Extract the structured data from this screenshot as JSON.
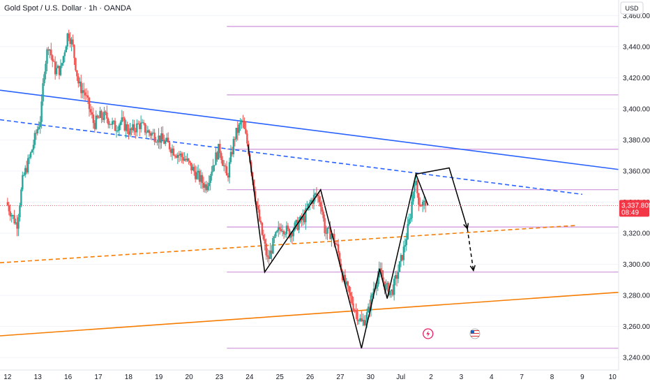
{
  "header": {
    "title": "Gold Spot / U.S. Dollar · 1h · OANDA",
    "currency": "USD"
  },
  "price_badge": {
    "price": "3,337.805",
    "countdown": "08:49",
    "color": "#f23645"
  },
  "colors": {
    "up": "#26a69a",
    "down": "#ef5350",
    "resistance_blue": "#2962ff",
    "support_orange": "#f57c00",
    "level_purple": "#ce93d8",
    "projection": "#000000"
  },
  "chart_data": {
    "type": "candlestick",
    "title": "Gold Spot / U.S. Dollar · 1h · OANDA",
    "currency": "USD",
    "y_ticks": [
      "3,460.000",
      "3,440.000",
      "3,420.000",
      "3,400.000",
      "3,380.000",
      "3,360.000",
      "3,340.000",
      "3,320.000",
      "3,300.000",
      "3,280.000",
      "3,260.000",
      "3,240.000"
    ],
    "ylim": [
      3232,
      3470
    ],
    "x_ticks": [
      "12",
      "13",
      "16",
      "17",
      "18",
      "19",
      "20",
      "23",
      "24",
      "25",
      "26",
      "27",
      "30",
      "Jul",
      "2",
      "3",
      "4",
      "7",
      "8",
      "9",
      "10"
    ],
    "x_axis_range": [
      -0.25,
      20.2
    ],
    "last_price": 3337.805,
    "price_path": [
      [
        0.0,
        3340
      ],
      [
        0.35,
        3325
      ],
      [
        0.55,
        3355
      ],
      [
        0.8,
        3370
      ],
      [
        1.0,
        3385
      ],
      [
        1.15,
        3395
      ],
      [
        1.25,
        3425
      ],
      [
        1.4,
        3442
      ],
      [
        1.6,
        3425
      ],
      [
        1.8,
        3425
      ],
      [
        2.05,
        3450
      ],
      [
        2.2,
        3440
      ],
      [
        2.4,
        3415
      ],
      [
        2.6,
        3410
      ],
      [
        2.9,
        3390
      ],
      [
        3.1,
        3395
      ],
      [
        3.3,
        3395
      ],
      [
        3.6,
        3388
      ],
      [
        3.8,
        3392
      ],
      [
        4.1,
        3385
      ],
      [
        4.4,
        3390
      ],
      [
        4.7,
        3385
      ],
      [
        5.0,
        3382
      ],
      [
        5.3,
        3378
      ],
      [
        5.6,
        3372
      ],
      [
        5.9,
        3368
      ],
      [
        6.2,
        3360
      ],
      [
        6.6,
        3350
      ],
      [
        6.85,
        3365
      ],
      [
        7.05,
        3375
      ],
      [
        7.3,
        3355
      ],
      [
        7.55,
        3382
      ],
      [
        7.8,
        3392
      ],
      [
        8.0,
        3375
      ],
      [
        8.15,
        3355
      ],
      [
        8.3,
        3335
      ],
      [
        8.45,
        3320
      ],
      [
        8.65,
        3302
      ],
      [
        8.85,
        3315
      ],
      [
        9.1,
        3325
      ],
      [
        9.35,
        3320
      ],
      [
        9.6,
        3325
      ],
      [
        9.85,
        3330
      ],
      [
        10.05,
        3340
      ],
      [
        10.25,
        3345
      ],
      [
        10.4,
        3340
      ],
      [
        10.55,
        3320
      ],
      [
        10.75,
        3320
      ],
      [
        10.95,
        3310
      ],
      [
        11.15,
        3290
      ],
      [
        11.35,
        3280
      ],
      [
        11.55,
        3270
      ],
      [
        11.75,
        3262
      ],
      [
        11.95,
        3268
      ],
      [
        12.15,
        3285
      ],
      [
        12.35,
        3295
      ],
      [
        12.55,
        3285
      ],
      [
        12.75,
        3282
      ],
      [
        12.95,
        3295
      ],
      [
        13.15,
        3310
      ],
      [
        13.35,
        3330
      ],
      [
        13.5,
        3355
      ],
      [
        13.65,
        3340
      ],
      [
        13.85,
        3338
      ]
    ],
    "series": [
      {
        "name": "",
        "style": "solid",
        "color": "#2962ff",
        "points": [
          [
            -0.25,
            3412
          ],
          [
            20.2,
            3361
          ]
        ]
      },
      {
        "name": "",
        "style": "dashed",
        "color": "#2962ff",
        "points": [
          [
            -0.25,
            3393
          ],
          [
            19.0,
            3345
          ]
        ]
      },
      {
        "name": "",
        "style": "solid",
        "color": "#f57c00",
        "points": [
          [
            -0.25,
            3254
          ],
          [
            20.2,
            3282
          ]
        ]
      },
      {
        "name": "",
        "style": "dashed",
        "color": "#f57c00",
        "points": [
          [
            -0.25,
            3301
          ],
          [
            18.8,
            3325
          ]
        ]
      }
    ],
    "horizontal_levels": [
      3453,
      3409,
      3374,
      3348,
      3324,
      3295,
      3246
    ],
    "level_x_start": 7.25,
    "pattern_lines": [
      [
        [
          7.95,
          3377
        ],
        [
          8.5,
          3295
        ],
        [
          10.35,
          3348
        ],
        [
          11.7,
          3246
        ],
        [
          12.3,
          3297
        ],
        [
          12.55,
          3278
        ],
        [
          13.5,
          3358
        ],
        [
          13.9,
          3338
        ]
      ],
      [
        [
          13.5,
          3358
        ],
        [
          14.6,
          3362
        ],
        [
          15.2,
          3323
        ]
      ]
    ],
    "projection_dashed": [
      [
        15.2,
        3323
      ],
      [
        15.4,
        3296
      ]
    ],
    "markers": [
      {
        "name": "lightning-event-icon",
        "x": 13.9
      },
      {
        "name": "us-flag-event-icon",
        "x": 15.45
      }
    ]
  }
}
